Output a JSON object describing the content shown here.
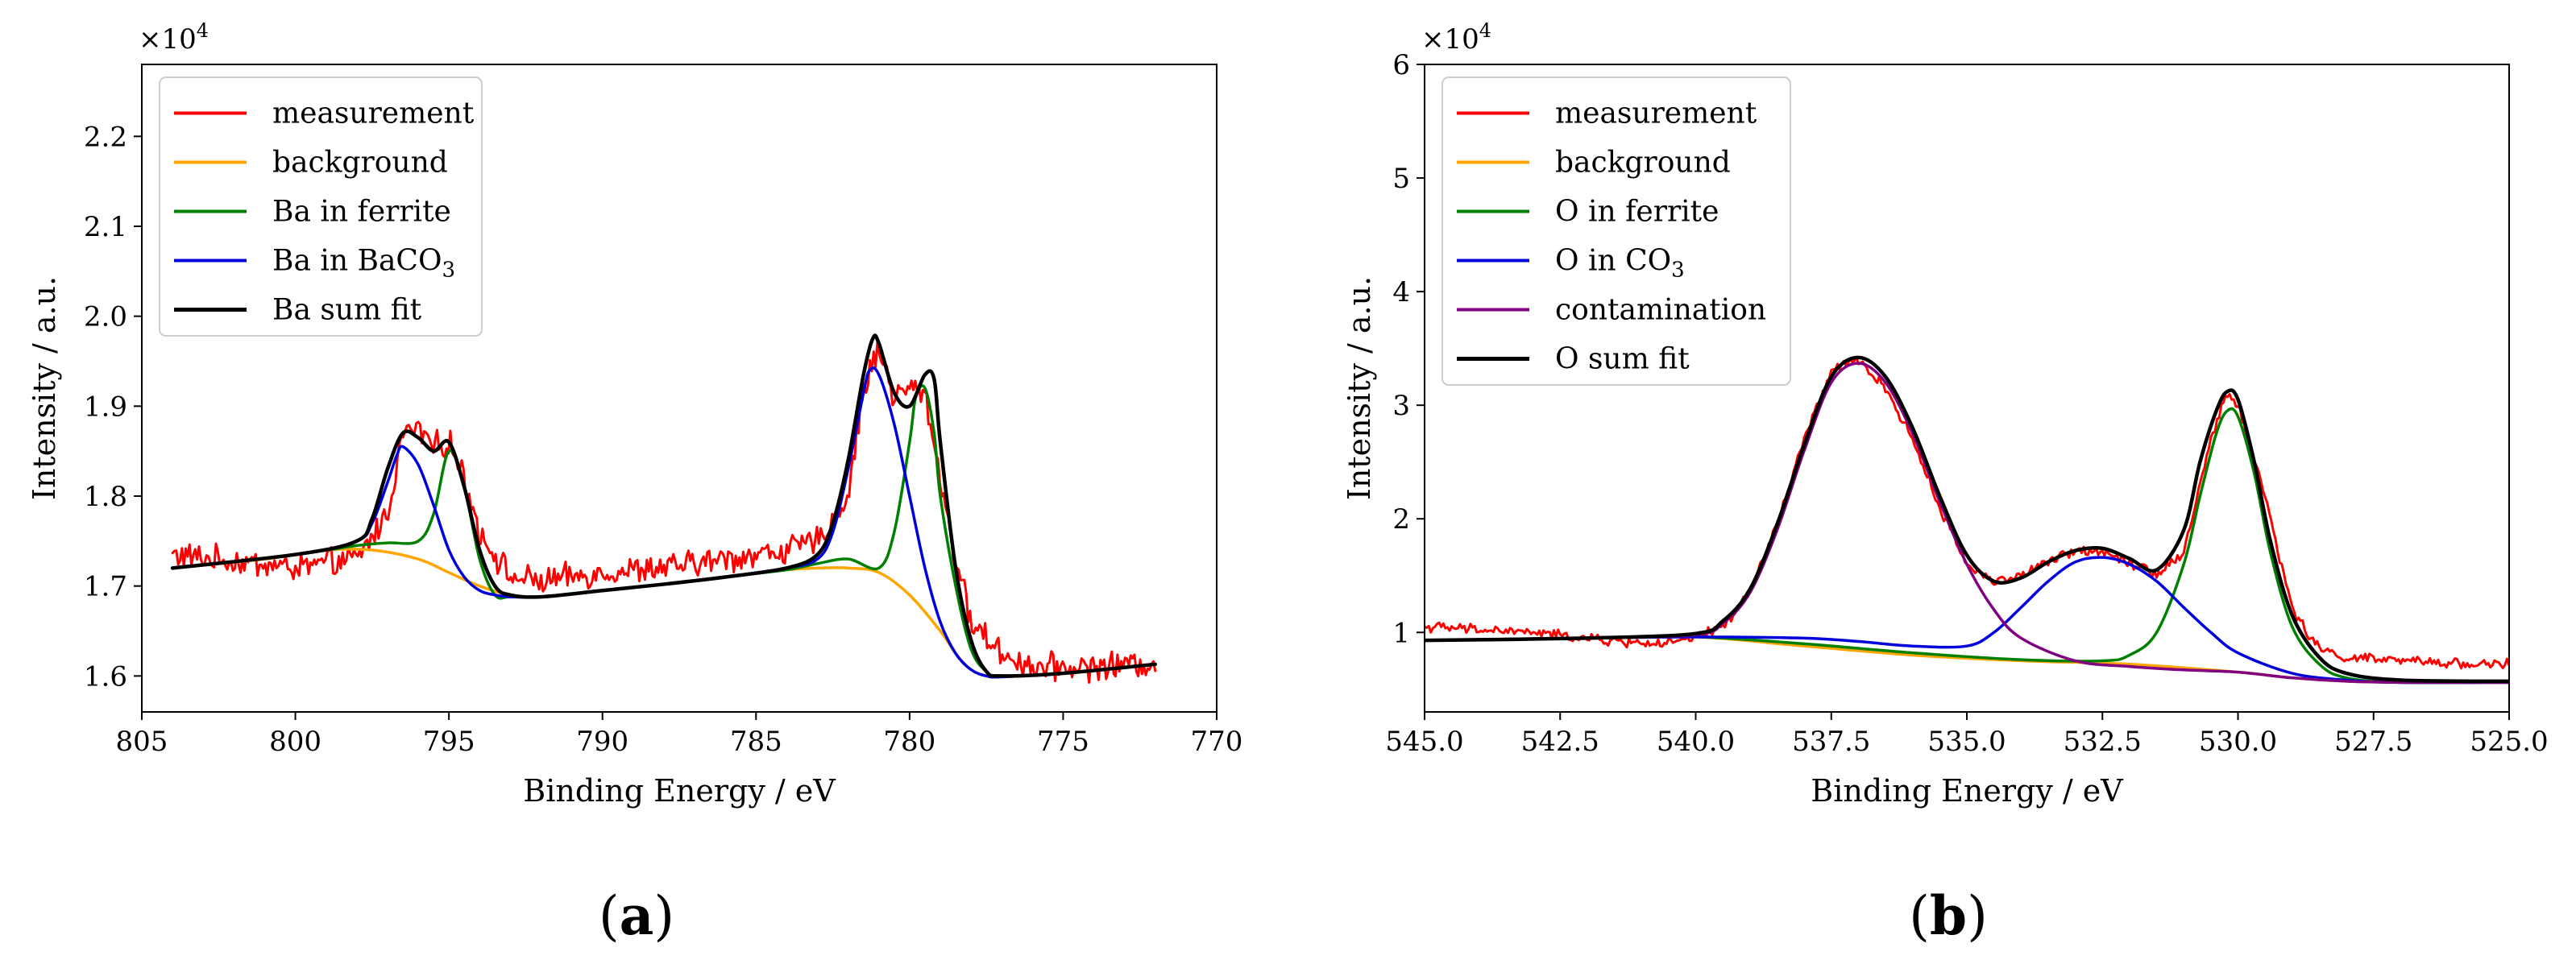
{
  "chart_data": [
    {
      "type": "line",
      "panel_label": "(a)",
      "xlabel": "Binding Energy / eV",
      "ylabel": "Intensity / a.u.",
      "y_multiplier": "×10^4",
      "xlim": [
        805,
        770
      ],
      "ylim": [
        1.56,
        2.28
      ],
      "x_ticks": [
        805,
        800,
        795,
        790,
        785,
        780,
        775,
        770
      ],
      "y_ticks": [
        1.6,
        1.7,
        1.8,
        1.9,
        2.0,
        2.1,
        2.2
      ],
      "x_tick_labels": [
        "805",
        "800",
        "795",
        "790",
        "785",
        "780",
        "775",
        "770"
      ],
      "y_tick_labels": [
        "1.6",
        "1.7",
        "1.8",
        "1.9",
        "2.0",
        "2.1",
        "2.2"
      ],
      "legend_position": "top-left",
      "noise": {
        "measurement": 0.012
      },
      "series": [
        {
          "name": "measurement",
          "label": "measurement",
          "color": "#ff0000",
          "noisy": true,
          "x": [
            804,
            800,
            798,
            797,
            796.5,
            796,
            795.5,
            795,
            794.5,
            794,
            793,
            792,
            790,
            788,
            786,
            784,
            783,
            782,
            781.5,
            781,
            780.5,
            780,
            779.5,
            779,
            778.5,
            778,
            777,
            776,
            774,
            772
          ],
          "y": [
            1.735,
            1.72,
            1.73,
            1.78,
            1.87,
            1.875,
            1.855,
            1.86,
            1.82,
            1.76,
            1.71,
            1.705,
            1.715,
            1.72,
            1.73,
            1.74,
            1.75,
            1.8,
            1.92,
            1.965,
            1.91,
            1.92,
            1.915,
            1.82,
            1.73,
            1.66,
            1.625,
            1.61,
            1.61,
            1.615
          ]
        },
        {
          "name": "background",
          "label": "background",
          "color": "#ffa500",
          "x": [
            804,
            801,
            799,
            797.5,
            796,
            795,
            794,
            793,
            792,
            790,
            788,
            786,
            784,
            783,
            782,
            781,
            780,
            779,
            778.5,
            778,
            777.5,
            777,
            775,
            772
          ],
          "y": [
            1.72,
            1.73,
            1.74,
            1.74,
            1.73,
            1.715,
            1.7,
            1.69,
            1.688,
            1.695,
            1.702,
            1.71,
            1.718,
            1.72,
            1.72,
            1.715,
            1.69,
            1.65,
            1.625,
            1.607,
            1.6,
            1.599,
            1.603,
            1.613
          ]
        },
        {
          "name": "ba_ferrite",
          "label": "Ba in ferrite",
          "color": "#008000",
          "x": [
            804,
            800,
            798,
            797,
            796,
            795.5,
            795,
            794.5,
            794,
            793.5,
            793,
            792,
            790,
            788,
            786,
            784,
            783,
            782,
            781,
            780.5,
            780,
            779.8,
            779.5,
            779.2,
            779,
            778.5,
            778,
            777.5,
            777,
            775,
            772
          ],
          "y": [
            1.72,
            1.735,
            1.745,
            1.748,
            1.75,
            1.78,
            1.85,
            1.81,
            1.73,
            1.69,
            1.688,
            1.688,
            1.695,
            1.702,
            1.71,
            1.718,
            1.725,
            1.73,
            1.72,
            1.76,
            1.86,
            1.91,
            1.92,
            1.87,
            1.8,
            1.7,
            1.63,
            1.605,
            1.6,
            1.603,
            1.613
          ]
        },
        {
          "name": "ba_baco3",
          "label": "Ba in BaCO₃",
          "color": "#0000dd",
          "x": [
            804,
            800,
            798,
            797.5,
            797,
            796.7,
            796.5,
            796,
            795.5,
            795,
            794.5,
            794,
            793.5,
            793,
            792,
            790,
            788,
            786,
            784,
            783,
            782.5,
            782,
            781.5,
            781.3,
            781,
            780.5,
            780,
            779.5,
            779,
            778.5,
            778,
            777.5,
            777,
            775,
            772
          ],
          "y": [
            1.72,
            1.735,
            1.75,
            1.77,
            1.815,
            1.845,
            1.855,
            1.835,
            1.79,
            1.74,
            1.71,
            1.695,
            1.69,
            1.688,
            1.688,
            1.695,
            1.702,
            1.71,
            1.72,
            1.73,
            1.76,
            1.83,
            1.915,
            1.94,
            1.935,
            1.88,
            1.8,
            1.72,
            1.66,
            1.625,
            1.607,
            1.6,
            1.599,
            1.603,
            1.613
          ]
        },
        {
          "name": "ba_sum",
          "label": "Ba sum fit",
          "color": "#000000",
          "x": [
            804,
            800,
            798,
            797.5,
            797,
            796.5,
            796,
            795.5,
            795,
            794.5,
            794,
            793.5,
            793,
            792,
            790,
            788,
            786,
            784,
            783,
            782.5,
            782,
            781.5,
            781.2,
            781,
            780.5,
            780,
            779.5,
            779.2,
            779,
            778.5,
            778,
            777.5,
            777,
            775,
            772
          ],
          "y": [
            1.72,
            1.735,
            1.75,
            1.775,
            1.83,
            1.87,
            1.865,
            1.85,
            1.86,
            1.81,
            1.74,
            1.7,
            1.69,
            1.688,
            1.695,
            1.702,
            1.71,
            1.72,
            1.735,
            1.77,
            1.84,
            1.935,
            1.975,
            1.97,
            1.915,
            1.9,
            1.935,
            1.93,
            1.86,
            1.72,
            1.64,
            1.605,
            1.6,
            1.603,
            1.613
          ]
        }
      ]
    },
    {
      "type": "line",
      "panel_label": "(b)",
      "xlabel": "Binding Energy / eV",
      "ylabel": "Intensity / a.u.",
      "y_multiplier": "×10^4",
      "xlim": [
        545,
        525
      ],
      "ylim": [
        0.3,
        6.0
      ],
      "x_ticks": [
        545,
        542.5,
        540,
        537.5,
        535,
        532.5,
        530,
        527.5,
        525
      ],
      "y_ticks": [
        1,
        2,
        3,
        4,
        5,
        6
      ],
      "x_tick_labels": [
        "545.0",
        "542.5",
        "540.0",
        "537.5",
        "535.0",
        "532.5",
        "530.0",
        "527.5",
        "525.0"
      ],
      "y_tick_labels": [
        "1",
        "2",
        "3",
        "4",
        "5",
        "6"
      ],
      "legend_position": "top-left",
      "noise": {
        "measurement": 0.035
      },
      "series": [
        {
          "name": "measurement",
          "label": "measurement",
          "color": "#ff0000",
          "noisy": true,
          "x": [
            545,
            543,
            541.5,
            540.5,
            540,
            539.5,
            539,
            538.5,
            538,
            537.5,
            537,
            536.5,
            536,
            535.5,
            535,
            534.5,
            534,
            533.5,
            533,
            532.5,
            532,
            531.5,
            531,
            530.5,
            530.2,
            530,
            529.5,
            529,
            528.5,
            528,
            527,
            526,
            525
          ],
          "y": [
            1.05,
            1.0,
            0.92,
            0.9,
            0.95,
            1.05,
            1.35,
            1.95,
            2.7,
            3.3,
            3.4,
            3.15,
            2.7,
            2.1,
            1.6,
            1.45,
            1.5,
            1.62,
            1.72,
            1.72,
            1.62,
            1.52,
            1.7,
            2.7,
            3.1,
            3.0,
            2.2,
            1.2,
            0.85,
            0.78,
            0.75,
            0.73,
            0.72
          ]
        },
        {
          "name": "background",
          "label": "background",
          "color": "#ffa500",
          "x": [
            545,
            542,
            540,
            538,
            536,
            534,
            532,
            530,
            529,
            528,
            527,
            525
          ],
          "y": [
            0.93,
            0.95,
            0.96,
            0.88,
            0.8,
            0.75,
            0.72,
            0.65,
            0.6,
            0.57,
            0.56,
            0.56
          ]
        },
        {
          "name": "o_ferrite",
          "label": "O in ferrite",
          "color": "#008000",
          "x": [
            545,
            542,
            540,
            538,
            536,
            534,
            532.5,
            532,
            531.5,
            531,
            530.7,
            530.4,
            530.2,
            530,
            529.7,
            529.4,
            529,
            528.5,
            528,
            527,
            525
          ],
          "y": [
            0.93,
            0.95,
            0.96,
            0.9,
            0.82,
            0.76,
            0.75,
            0.8,
            1.0,
            1.6,
            2.2,
            2.75,
            2.95,
            2.9,
            2.4,
            1.7,
            1.05,
            0.72,
            0.6,
            0.56,
            0.56
          ]
        },
        {
          "name": "o_co3",
          "label": "O in CO₃",
          "color": "#0000dd",
          "x": [
            545,
            542,
            540,
            538,
            537,
            536,
            535,
            534.5,
            534,
            533.5,
            533,
            532.5,
            532,
            531.5,
            531,
            530.5,
            530,
            529,
            528,
            527,
            525
          ],
          "y": [
            0.93,
            0.95,
            0.96,
            0.95,
            0.92,
            0.88,
            0.88,
            1.0,
            1.22,
            1.45,
            1.62,
            1.66,
            1.6,
            1.45,
            1.22,
            1.0,
            0.82,
            0.64,
            0.58,
            0.56,
            0.56
          ]
        },
        {
          "name": "contamination",
          "label": "contamination",
          "color": "#800080",
          "x": [
            545,
            542,
            540,
            539.5,
            539,
            538.5,
            538,
            537.5,
            537,
            536.5,
            536,
            535.5,
            535,
            534.5,
            534,
            533,
            532,
            531,
            530,
            529,
            528,
            527,
            525
          ],
          "y": [
            0.93,
            0.95,
            0.98,
            1.08,
            1.35,
            1.9,
            2.6,
            3.2,
            3.37,
            3.2,
            2.75,
            2.15,
            1.6,
            1.2,
            0.95,
            0.75,
            0.7,
            0.67,
            0.65,
            0.6,
            0.57,
            0.56,
            0.56
          ]
        },
        {
          "name": "o_sum",
          "label": "O sum fit",
          "color": "#000000",
          "x": [
            545,
            542,
            540,
            539.5,
            539,
            538.5,
            538,
            537.5,
            537,
            536.5,
            536,
            535.5,
            535,
            534.5,
            534,
            533.5,
            533,
            532.5,
            532,
            531.5,
            531,
            530.7,
            530.4,
            530.2,
            530,
            529.7,
            529.4,
            529,
            528.5,
            528,
            527,
            525
          ],
          "y": [
            0.93,
            0.95,
            0.99,
            1.1,
            1.38,
            1.95,
            2.65,
            3.25,
            3.42,
            3.25,
            2.8,
            2.2,
            1.68,
            1.45,
            1.48,
            1.62,
            1.72,
            1.74,
            1.65,
            1.55,
            1.9,
            2.5,
            2.95,
            3.12,
            3.05,
            2.5,
            1.8,
            1.15,
            0.78,
            0.64,
            0.58,
            0.57
          ]
        }
      ]
    }
  ]
}
